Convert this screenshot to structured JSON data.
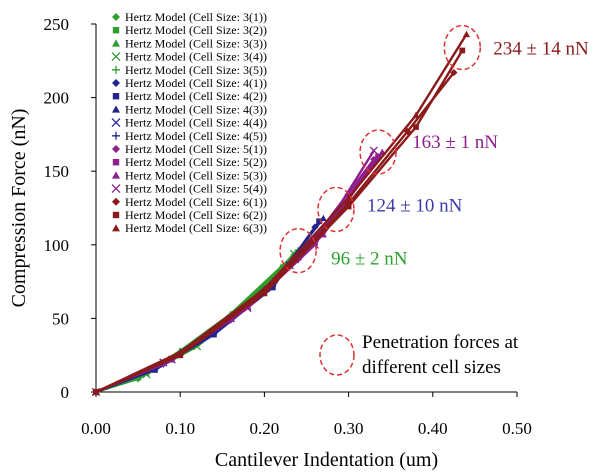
{
  "chart_data": {
    "type": "line",
    "xlabel": "Cantilever Indentation (um)",
    "ylabel": "Compression Force (nN)",
    "xlim": [
      0,
      0.5
    ],
    "ylim": [
      0,
      250
    ],
    "xticks": [
      "0.00",
      "0.10",
      "0.20",
      "0.30",
      "0.40",
      "0.50"
    ],
    "yticks": [
      "0",
      "50",
      "100",
      "150",
      "200",
      "250"
    ],
    "grid": false,
    "legend_position": "top-left",
    "series": [
      {
        "name": "Hertz Model (Cell Size: 3(1))",
        "color": "#2e9e2e",
        "marker": "diamond",
        "x": [
          0,
          0.05,
          0.1,
          0.15,
          0.2,
          0.235
        ],
        "y": [
          0,
          9,
          25,
          46,
          72,
          93
        ]
      },
      {
        "name": "Hertz Model (Cell Size: 3(2))",
        "color": "#2e9e2e",
        "marker": "square",
        "x": [
          0,
          0.06,
          0.12,
          0.18,
          0.24
        ],
        "y": [
          0,
          13,
          33,
          59,
          95
        ]
      },
      {
        "name": "Hertz Model (Cell Size: 3(3))",
        "color": "#2e9e2e",
        "marker": "triangle",
        "x": [
          0,
          0.05,
          0.1,
          0.16,
          0.22,
          0.245
        ],
        "y": [
          0,
          10,
          28,
          53,
          85,
          98
        ]
      },
      {
        "name": "Hertz Model (Cell Size: 3(4))",
        "color": "#2e9e2e",
        "marker": "x",
        "x": [
          0,
          0.06,
          0.12,
          0.18,
          0.235
        ],
        "y": [
          0,
          12,
          31,
          58,
          94
        ]
      },
      {
        "name": "Hertz Model (Cell Size: 3(5))",
        "color": "#2e9e2e",
        "marker": "plus",
        "x": [
          0,
          0.05,
          0.11,
          0.17,
          0.24
        ],
        "y": [
          0,
          10,
          30,
          56,
          96
        ]
      },
      {
        "name": "Hertz Model (Cell Size: 4(1))",
        "color": "#24248f",
        "marker": "diamond",
        "x": [
          0,
          0.07,
          0.14,
          0.21,
          0.26
        ],
        "y": [
          0,
          16,
          40,
          72,
          112
        ]
      },
      {
        "name": "Hertz Model (Cell Size: 4(2))",
        "color": "#24248f",
        "marker": "square",
        "x": [
          0,
          0.07,
          0.14,
          0.21,
          0.265
        ],
        "y": [
          0,
          15,
          39,
          71,
          116
        ]
      },
      {
        "name": "Hertz Model (Cell Size: 4(3))",
        "color": "#24248f",
        "marker": "triangle",
        "x": [
          0,
          0.07,
          0.14,
          0.21,
          0.27
        ],
        "y": [
          0,
          17,
          41,
          74,
          118
        ]
      },
      {
        "name": "Hertz Model (Cell Size: 4(4))",
        "color": "#24248f",
        "marker": "x",
        "x": [
          0,
          0.08,
          0.16,
          0.23,
          0.3
        ],
        "y": [
          0,
          20,
          50,
          86,
          132
        ]
      },
      {
        "name": "Hertz Model (Cell Size: 4(5))",
        "color": "#24248f",
        "marker": "plus",
        "x": [
          0,
          0.08,
          0.16,
          0.24,
          0.29
        ],
        "y": [
          0,
          19,
          49,
          90,
          124
        ]
      },
      {
        "name": "Hertz Model (Cell Size: 5(1))",
        "color": "#8e1f8e",
        "marker": "diamond",
        "x": [
          0,
          0.08,
          0.16,
          0.24,
          0.33
        ],
        "y": [
          0,
          19,
          49,
          90,
          158
        ]
      },
      {
        "name": "Hertz Model (Cell Size: 5(2))",
        "color": "#8e1f8e",
        "marker": "square",
        "x": [
          0,
          0.09,
          0.18,
          0.26,
          0.335
        ],
        "y": [
          0,
          22,
          58,
          101,
          160
        ]
      },
      {
        "name": "Hertz Model (Cell Size: 5(3))",
        "color": "#8e1f8e",
        "marker": "triangle",
        "x": [
          0,
          0.09,
          0.18,
          0.27,
          0.34
        ],
        "y": [
          0,
          22,
          58,
          107,
          163
        ]
      },
      {
        "name": "Hertz Model (Cell Size: 5(4))",
        "color": "#8e1f8e",
        "marker": "x",
        "x": [
          0,
          0.09,
          0.18,
          0.26,
          0.33
        ],
        "y": [
          0,
          22,
          57,
          100,
          164
        ]
      },
      {
        "name": "Hertz Model (Cell Size: 6(1))",
        "color": "#8b1a1a",
        "marker": "diamond",
        "x": [
          0,
          0.1,
          0.2,
          0.3,
          0.37,
          0.425
        ],
        "y": [
          0,
          26,
          68,
          128,
          177,
          217
        ]
      },
      {
        "name": "Hertz Model (Cell Size: 6(2))",
        "color": "#8b1a1a",
        "marker": "square",
        "x": [
          0,
          0.1,
          0.2,
          0.3,
          0.38,
          0.435
        ],
        "y": [
          0,
          25,
          67,
          126,
          180,
          232
        ]
      },
      {
        "name": "Hertz Model (Cell Size: 6(3))",
        "color": "#8b1a1a",
        "marker": "triangle",
        "x": [
          0,
          0.1,
          0.2,
          0.3,
          0.38,
          0.44
        ],
        "y": [
          0,
          27,
          70,
          132,
          188,
          243
        ]
      }
    ],
    "annotations": [
      {
        "text": "96 ± 2 nN",
        "color": "#2ea02e",
        "x": 0.24,
        "y": 96
      },
      {
        "text": "124 ± 10 nN",
        "color": "#3c3ca8",
        "x": 0.285,
        "y": 124
      },
      {
        "text": "163 ± 1 nN",
        "color": "#8e1f8e",
        "x": 0.335,
        "y": 163
      },
      {
        "text": "234 ± 14 nN",
        "color": "#8b1a1a",
        "x": 0.435,
        "y": 234
      }
    ],
    "note": {
      "lines": [
        "Penetration forces at",
        "different cell sizes"
      ],
      "circle_color": "#e03030"
    }
  }
}
